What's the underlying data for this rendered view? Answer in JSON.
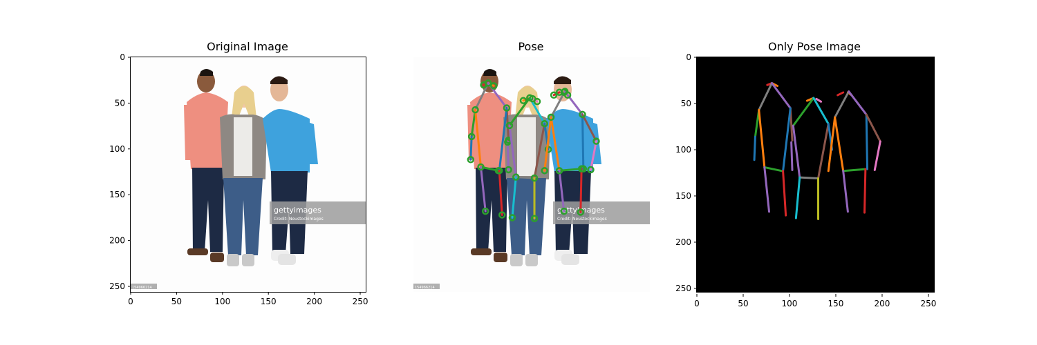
{
  "panels": [
    {
      "title": "Original Image",
      "x_ticks": [
        "0",
        "50",
        "100",
        "150",
        "200",
        "250"
      ],
      "y_ticks": [
        "0",
        "50",
        "100",
        "150",
        "200",
        "250"
      ],
      "watermark": {
        "brand": "gettyimages",
        "credit": "Credit: Neustockimages"
      },
      "image_id": "154966214"
    },
    {
      "title": "Pose",
      "watermark": {
        "brand": "gettyimages",
        "credit": "Credit: Neustockimages"
      },
      "image_id": "154966214"
    },
    {
      "title": "Only Pose Image",
      "x_ticks": [
        "0",
        "50",
        "100",
        "150",
        "200",
        "250"
      ],
      "y_ticks": [
        "0",
        "50",
        "100",
        "150",
        "200",
        "250"
      ]
    }
  ],
  "colors": {
    "pose_background": "#000000",
    "keypoint": "#2ca02c",
    "limbs": [
      "#1f77b4",
      "#ff7f0e",
      "#2ca02c",
      "#d62728",
      "#9467bd",
      "#8c564b",
      "#e377c2",
      "#7f7f7f",
      "#17becf",
      "#bcbd22"
    ]
  },
  "skeletons": [
    {
      "person": "left",
      "segments": [
        [
          [
            76,
            30
          ],
          [
            81,
            28
          ],
          "#d62728"
        ],
        [
          [
            81,
            28
          ],
          [
            87,
            31
          ],
          "#ff7f0e"
        ],
        [
          [
            81,
            28
          ],
          [
            67,
            57
          ],
          "#7f7f7f"
        ],
        [
          [
            81,
            28
          ],
          [
            101,
            55
          ],
          "#9467bd"
        ],
        [
          [
            67,
            57
          ],
          [
            63,
            86
          ],
          "#2ca02c"
        ],
        [
          [
            63,
            86
          ],
          [
            62,
            111
          ],
          "#1f77b4"
        ],
        [
          [
            67,
            57
          ],
          [
            73,
            119
          ],
          "#ff7f0e"
        ],
        [
          [
            73,
            119
          ],
          [
            92,
            123
          ],
          "#2ca02c"
        ],
        [
          [
            101,
            55
          ],
          [
            103,
            90
          ],
          "#8c564b"
        ],
        [
          [
            101,
            55
          ],
          [
            93,
            123
          ],
          "#1f77b4"
        ],
        [
          [
            73,
            119
          ],
          [
            78,
            167
          ],
          "#9467bd"
        ],
        [
          [
            93,
            123
          ],
          [
            96,
            171
          ],
          "#d62728"
        ],
        [
          [
            102,
            92
          ],
          [
            103,
            122
          ],
          "#9467bd"
        ]
      ]
    },
    {
      "person": "middle",
      "segments": [
        [
          [
            119,
            47
          ],
          [
            126,
            44
          ],
          "#ff7f0e"
        ],
        [
          [
            129,
            45
          ],
          [
            134,
            48
          ],
          "#e377c2"
        ],
        [
          [
            126,
            44
          ],
          [
            104,
            74
          ],
          "#2ca02c"
        ],
        [
          [
            126,
            44
          ],
          [
            142,
            72
          ],
          "#17becf"
        ],
        [
          [
            104,
            74
          ],
          [
            111,
            130
          ],
          "#9467bd"
        ],
        [
          [
            111,
            130
          ],
          [
            131,
            131
          ],
          "#7f7f7f"
        ],
        [
          [
            142,
            72
          ],
          [
            131,
            131
          ],
          "#8c564b"
        ],
        [
          [
            142,
            72
          ],
          [
            146,
            100
          ],
          "#1f77b4"
        ],
        [
          [
            111,
            130
          ],
          [
            107,
            174
          ],
          "#17becf"
        ],
        [
          [
            131,
            131
          ],
          [
            131,
            175
          ],
          "#bcbd22"
        ]
      ]
    },
    {
      "person": "right",
      "segments": [
        [
          [
            152,
            41
          ],
          [
            158,
            38
          ],
          "#d62728"
        ],
        [
          [
            163,
            38
          ],
          [
            167,
            41
          ],
          "#ff7f0e"
        ],
        [
          [
            164,
            37
          ],
          [
            149,
            65
          ],
          "#7f7f7f"
        ],
        [
          [
            164,
            37
          ],
          [
            183,
            62
          ],
          "#9467bd"
        ],
        [
          [
            149,
            65
          ],
          [
            158,
            123
          ],
          "#ff7f0e"
        ],
        [
          [
            158,
            123
          ],
          [
            182,
            121
          ],
          "#2ca02c"
        ],
        [
          [
            183,
            62
          ],
          [
            184,
            121
          ],
          "#1f77b4"
        ],
        [
          [
            183,
            62
          ],
          [
            198,
            91
          ],
          "#8c564b"
        ],
        [
          [
            198,
            91
          ],
          [
            192,
            122
          ],
          "#e377c2"
        ],
        [
          [
            149,
            65
          ],
          [
            142,
            123
          ],
          "#ff7f0e"
        ],
        [
          [
            158,
            123
          ],
          [
            163,
            167
          ],
          "#9467bd"
        ],
        [
          [
            182,
            121
          ],
          [
            181,
            168
          ],
          "#d62728"
        ]
      ]
    }
  ]
}
